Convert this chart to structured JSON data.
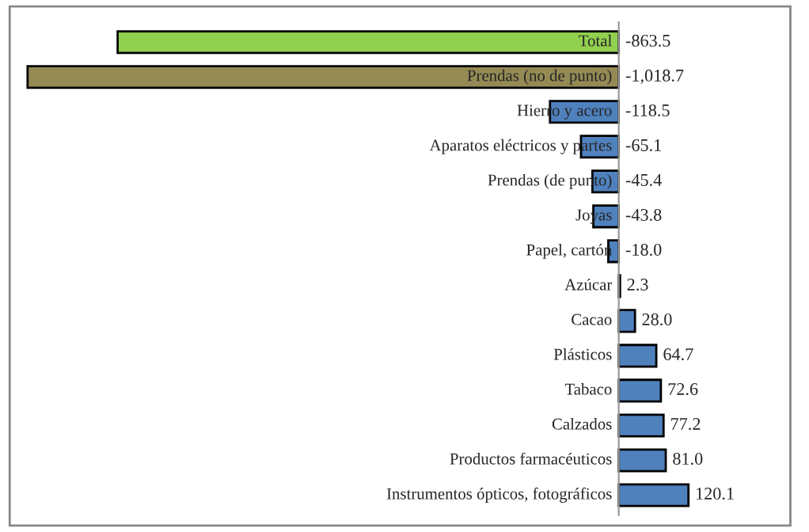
{
  "chart_data": {
    "type": "bar",
    "orientation": "horizontal",
    "categories": [
      "Total",
      "Prendas (no de punto)",
      "Hierro y acero",
      "Aparatos eléctricos y partes",
      "Prendas (de punto)",
      "Joyas",
      "Papel, cartón",
      "Azúcar",
      "Cacao",
      "Plásticos",
      "Tabaco",
      "Calzados",
      "Productos farmacéuticos",
      "Instrumentos ópticos, fotográficos"
    ],
    "values": [
      -863.5,
      -1018.7,
      -118.5,
      -65.1,
      -45.4,
      -43.8,
      -18.0,
      2.3,
      28.0,
      64.7,
      72.6,
      77.2,
      81.0,
      120.1
    ],
    "colors": [
      "#92d050",
      "#948a54",
      "#4f81bd",
      "#4f81bd",
      "#4f81bd",
      "#4f81bd",
      "#4f81bd",
      "#4f81bd",
      "#4f81bd",
      "#4f81bd",
      "#4f81bd",
      "#4f81bd",
      "#4f81bd",
      "#4f81bd"
    ],
    "value_labels": [
      "-863.5",
      "-1,018.7",
      "-118.5",
      "-65.1",
      "-45.4",
      "-43.8",
      "-18.0",
      "2.3",
      "28.0",
      "64.7",
      "72.6",
      "77.2",
      "81.0",
      "120.1"
    ],
    "legend": false
  }
}
